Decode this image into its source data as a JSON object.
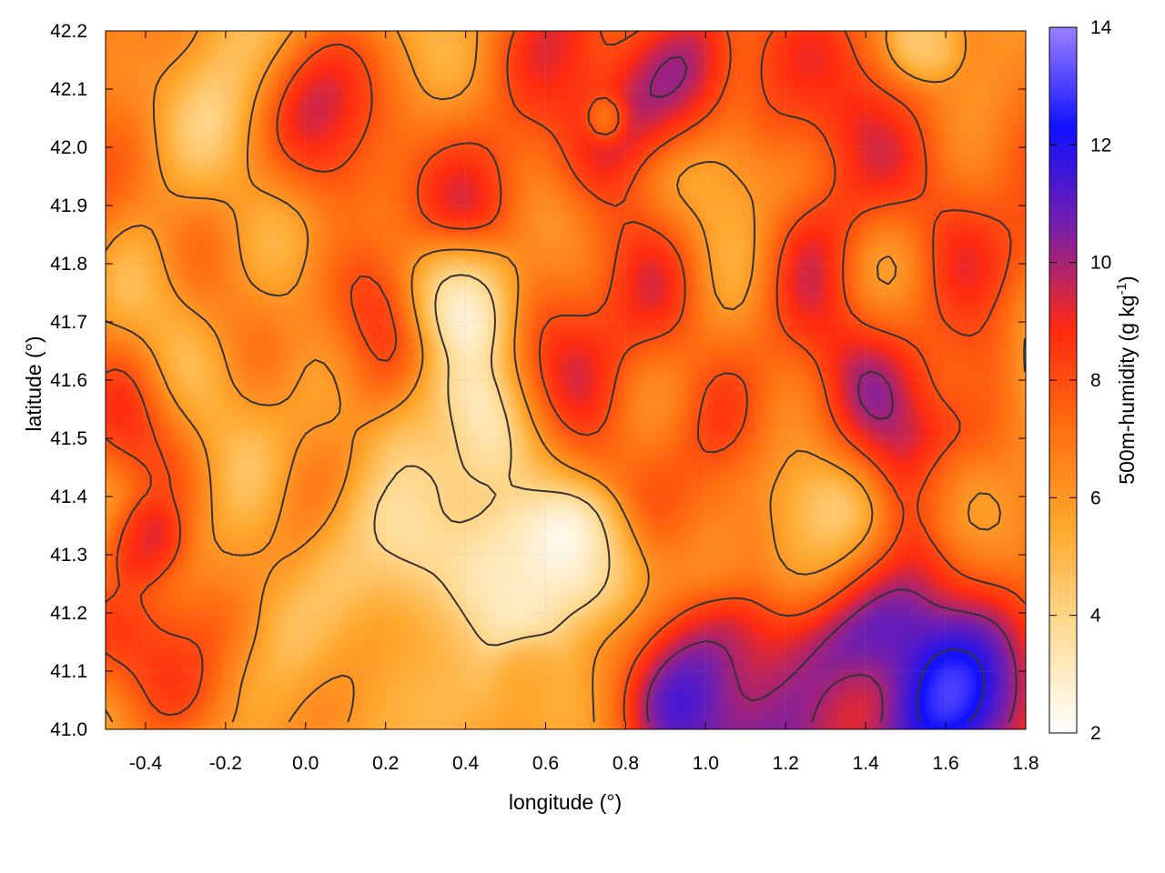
{
  "chart_data": {
    "type": "heatmap",
    "xlabel": "longitude (°)",
    "ylabel": "latitude (°)",
    "colorbar_label_main": "500m-humidity (g kg",
    "colorbar_label_sup": "-1",
    "colorbar_label_end": ")",
    "xlim": [
      -0.5,
      1.8
    ],
    "ylim": [
      41.0,
      42.2
    ],
    "clim": [
      2,
      14
    ],
    "xticks": [
      -0.4,
      -0.2,
      0.0,
      0.2,
      0.4,
      0.6,
      0.8,
      1.0,
      1.2,
      1.4,
      1.6,
      1.8
    ],
    "xtick_labels": [
      "-0.4",
      "-0.2",
      "0.0",
      "0.2",
      "0.4",
      "0.6",
      "0.8",
      "1.0",
      "1.2",
      "1.4",
      "1.6",
      "1.8"
    ],
    "yticks": [
      41.0,
      41.1,
      41.2,
      41.3,
      41.4,
      41.5,
      41.6,
      41.7,
      41.8,
      41.9,
      42.0,
      42.1,
      42.2
    ],
    "ytick_labels": [
      "41.0",
      "41.1",
      "41.2",
      "41.3",
      "41.4",
      "41.5",
      "41.6",
      "41.7",
      "41.8",
      "41.9",
      "42.0",
      "42.1",
      "42.2"
    ],
    "cticks": [
      2,
      4,
      6,
      8,
      10,
      12,
      14
    ],
    "ctick_labels": [
      "2",
      "4",
      "6",
      "8",
      "10",
      "12",
      "14"
    ],
    "colormap": [
      "#ffffff",
      "#ffdd99",
      "#ffaa30",
      "#ff7010",
      "#ff2a10",
      "#7a1fa8",
      "#1010ff",
      "#9a80ff"
    ],
    "contour_color": "#333333",
    "grid": true,
    "field_blobs": [
      {
        "x": -0.25,
        "y": 41.55,
        "v": 7.2,
        "r": 0.18
      },
      {
        "x": 0.05,
        "y": 41.65,
        "v": 7.0,
        "r": 0.15
      },
      {
        "x": -0.4,
        "y": 41.32,
        "v": 9.5,
        "r": 0.07
      },
      {
        "x": -0.35,
        "y": 41.15,
        "v": 7.6,
        "r": 0.12
      },
      {
        "x": -0.2,
        "y": 41.1,
        "v": 7.8,
        "r": 0.1
      },
      {
        "x": 0.15,
        "y": 42.05,
        "v": 8.5,
        "r": 0.14
      },
      {
        "x": 0.4,
        "y": 41.95,
        "v": 9.0,
        "r": 0.13
      },
      {
        "x": 0.65,
        "y": 42.08,
        "v": 9.5,
        "r": 0.15
      },
      {
        "x": 0.9,
        "y": 42.12,
        "v": 10.0,
        "r": 0.12
      },
      {
        "x": 1.25,
        "y": 42.1,
        "v": 9.2,
        "r": 0.12
      },
      {
        "x": 0.8,
        "y": 41.68,
        "v": 7.8,
        "r": 0.2
      },
      {
        "x": 1.35,
        "y": 41.7,
        "v": 8.5,
        "r": 0.22
      },
      {
        "x": 1.55,
        "y": 41.55,
        "v": 9.0,
        "r": 0.16
      },
      {
        "x": 1.7,
        "y": 41.9,
        "v": 8.6,
        "r": 0.15
      },
      {
        "x": 0.35,
        "y": 41.5,
        "v": 3.2,
        "r": 0.12
      },
      {
        "x": 0.2,
        "y": 41.3,
        "v": 3.6,
        "r": 0.12
      },
      {
        "x": 0.5,
        "y": 41.25,
        "v": 3.0,
        "r": 0.13
      },
      {
        "x": 0.7,
        "y": 41.3,
        "v": 2.6,
        "r": 0.1
      },
      {
        "x": 0.25,
        "y": 41.1,
        "v": 4.2,
        "r": 0.15
      },
      {
        "x": 0.55,
        "y": 41.1,
        "v": 6.8,
        "r": 0.06
      },
      {
        "x": 1.3,
        "y": 41.3,
        "v": 3.6,
        "r": 0.14
      },
      {
        "x": 1.05,
        "y": 41.32,
        "v": 7.0,
        "r": 0.08
      },
      {
        "x": 1.3,
        "y": 41.08,
        "v": 11.8,
        "r": 0.22
      },
      {
        "x": 1.6,
        "y": 41.07,
        "v": 12.5,
        "r": 0.18
      },
      {
        "x": 1.05,
        "y": 41.05,
        "v": 11.5,
        "r": 0.15
      },
      {
        "x": 1.6,
        "y": 41.42,
        "v": 4.6,
        "r": 0.08
      },
      {
        "x": 1.55,
        "y": 42.18,
        "v": 3.5,
        "r": 0.06
      },
      {
        "x": 0.75,
        "y": 42.05,
        "v": 4.5,
        "r": 0.04
      },
      {
        "x": 0.4,
        "y": 41.75,
        "v": 4.0,
        "r": 0.1
      }
    ],
    "field_base": 6.2,
    "contour_levels": [
      4,
      6,
      8,
      10,
      12
    ]
  }
}
